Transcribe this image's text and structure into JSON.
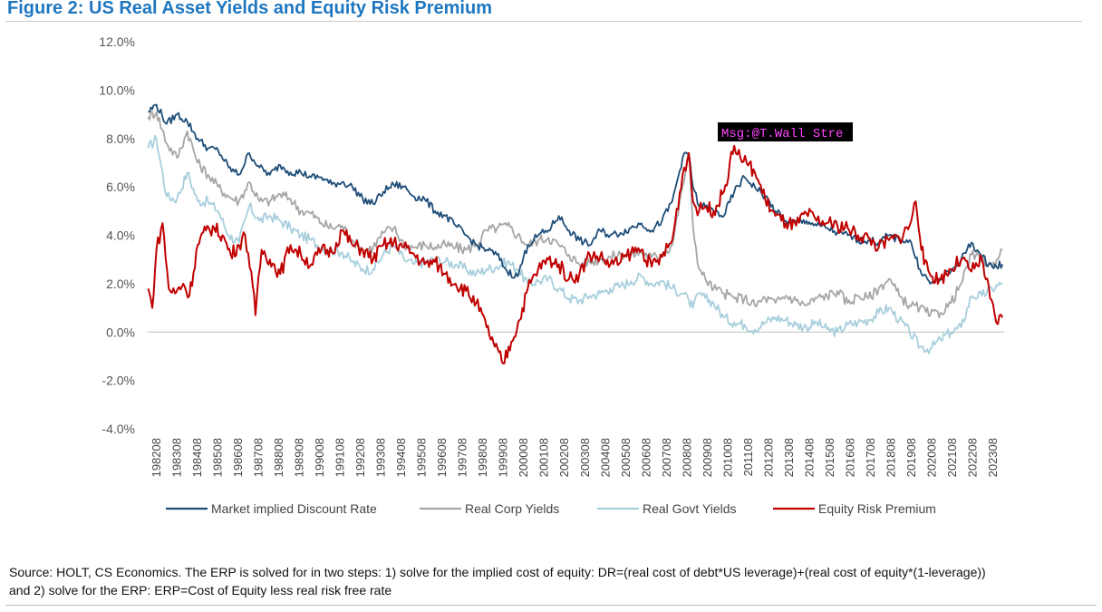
{
  "figure": {
    "title": "Figure 2: US Real Asset Yields and Equity Risk Premium",
    "source_line1": "Source: HOLT, CS Economics. The ERP is solved for in two steps: 1) solve for the implied cost of equity: DR=(real cost of debt*US leverage)+(real cost of equity*(1-leverage))",
    "source_line2": "and 2) solve for the ERP: ERP=Cost of Equity less real risk free rate",
    "overlay_text": "Msg:@T.Wall Stre"
  },
  "colors": {
    "Market implied Discount Rate": "#1f4e79",
    "Real Corp Yields": "#a6a6a6",
    "Real Govt Yields": "#a8cfdc",
    "Equity Risk Premium": "#c00000",
    "overlay_bg": "#000000",
    "overlay_text": "#ff44ff"
  },
  "chart_data": {
    "type": "line",
    "title": "US Real Asset Yields and Equity Risk Premium",
    "xlabel": "",
    "ylabel": "",
    "ylim": [
      -4,
      12
    ],
    "y_ticks": [
      12,
      10,
      8,
      6,
      4,
      2,
      0,
      -2,
      -4
    ],
    "y_tick_labels": [
      "12.0%",
      "10.0%",
      "8.0%",
      "6.0%",
      "4.0%",
      "2.0%",
      "0.0%",
      "-2.0%",
      "-4.0%"
    ],
    "x_start": 1982.58,
    "x_end": 2024.08,
    "x_tick_labels": [
      "198208",
      "198308",
      "198408",
      "198508",
      "198608",
      "198708",
      "198808",
      "198908",
      "199008",
      "199108",
      "199208",
      "199308",
      "199408",
      "199508",
      "199608",
      "199708",
      "199808",
      "199908",
      "200008",
      "200108",
      "200208",
      "200308",
      "200408",
      "200508",
      "200608",
      "200708",
      "200808",
      "200908",
      "201008",
      "201108",
      "201208",
      "201308",
      "201408",
      "201508",
      "201608",
      "201708",
      "201808",
      "201908",
      "202008",
      "202108",
      "202208",
      "202308"
    ],
    "legend_position": "bottom",
    "series": [
      {
        "name": "Market implied Discount Rate",
        "x": [
          1982.6,
          1983.0,
          1983.5,
          1984.0,
          1984.5,
          1985.0,
          1985.5,
          1986.0,
          1986.5,
          1987.0,
          1987.5,
          1988.0,
          1988.5,
          1989.0,
          1989.5,
          1990.0,
          1990.5,
          1991.0,
          1991.5,
          1992.0,
          1992.5,
          1993.0,
          1993.5,
          1994.0,
          1994.5,
          1995.0,
          1995.5,
          1996.0,
          1996.5,
          1997.0,
          1997.5,
          1998.0,
          1998.5,
          1999.0,
          1999.5,
          2000.0,
          2000.5,
          2001.0,
          2001.5,
          2002.0,
          2002.5,
          2003.0,
          2003.5,
          2004.0,
          2004.5,
          2005.0,
          2005.5,
          2006.0,
          2006.5,
          2007.0,
          2007.5,
          2008.0,
          2008.5,
          2008.8,
          2009.0,
          2009.3,
          2009.6,
          2010.0,
          2010.5,
          2011.0,
          2011.5,
          2012.0,
          2012.5,
          2013.0,
          2013.5,
          2014.0,
          2014.5,
          2015.0,
          2015.5,
          2016.0,
          2016.5,
          2017.0,
          2017.5,
          2018.0,
          2018.5,
          2019.0,
          2019.5,
          2020.0,
          2020.5,
          2021.0,
          2021.5,
          2022.0,
          2022.5,
          2023.0,
          2023.5,
          2024.0
        ],
        "values": [
          9.1,
          9.4,
          8.6,
          9.0,
          8.7,
          8.0,
          7.6,
          7.5,
          6.8,
          6.5,
          7.4,
          6.8,
          6.5,
          6.9,
          6.6,
          6.6,
          6.4,
          6.4,
          6.1,
          6.2,
          6.0,
          5.5,
          5.3,
          5.8,
          6.1,
          6.0,
          5.6,
          5.5,
          5.0,
          4.8,
          4.4,
          4.0,
          3.6,
          3.4,
          3.2,
          2.5,
          2.3,
          3.6,
          4.0,
          4.2,
          4.8,
          4.2,
          3.8,
          3.6,
          4.2,
          4.0,
          4.1,
          4.3,
          4.5,
          4.2,
          4.6,
          5.4,
          7.2,
          7.4,
          6.0,
          5.2,
          5.2,
          5.0,
          4.8,
          5.8,
          6.4,
          6.0,
          5.6,
          5.0,
          4.6,
          4.5,
          4.6,
          4.4,
          4.3,
          4.1,
          4.0,
          3.8,
          3.8,
          3.7,
          4.0,
          3.8,
          3.8,
          2.6,
          2.0,
          2.2,
          2.5,
          3.0,
          3.7,
          3.1,
          2.7,
          2.8
        ]
      },
      {
        "name": "Real Corp Yields",
        "x": [
          1982.6,
          1983.0,
          1983.5,
          1984.0,
          1984.5,
          1985.0,
          1985.5,
          1986.0,
          1986.5,
          1987.0,
          1987.5,
          1988.0,
          1988.5,
          1989.0,
          1989.5,
          1990.0,
          1990.5,
          1991.0,
          1991.5,
          1992.0,
          1992.5,
          1993.0,
          1993.5,
          1994.0,
          1994.5,
          1995.0,
          1995.5,
          1996.0,
          1996.5,
          1997.0,
          1997.5,
          1998.0,
          1998.5,
          1999.0,
          1999.5,
          2000.0,
          2000.5,
          2001.0,
          2001.5,
          2002.0,
          2002.5,
          2003.0,
          2003.5,
          2004.0,
          2004.5,
          2005.0,
          2005.5,
          2006.0,
          2006.5,
          2007.0,
          2007.5,
          2008.0,
          2008.5,
          2008.8,
          2009.0,
          2009.3,
          2009.6,
          2010.0,
          2010.5,
          2011.0,
          2011.5,
          2012.0,
          2012.5,
          2013.0,
          2013.5,
          2014.0,
          2014.5,
          2015.0,
          2015.5,
          2016.0,
          2016.5,
          2017.0,
          2017.5,
          2018.0,
          2018.5,
          2019.0,
          2019.5,
          2020.0,
          2020.5,
          2021.0,
          2021.5,
          2022.0,
          2022.5,
          2023.0,
          2023.5,
          2024.0
        ],
        "values": [
          8.9,
          9.1,
          7.8,
          7.2,
          8.3,
          7.0,
          6.5,
          6.0,
          5.6,
          5.4,
          6.2,
          5.4,
          5.4,
          5.7,
          5.5,
          5.0,
          4.9,
          4.5,
          4.3,
          4.4,
          3.8,
          3.4,
          3.5,
          4.1,
          4.3,
          3.6,
          3.5,
          3.6,
          3.5,
          3.6,
          3.5,
          3.4,
          3.6,
          4.2,
          4.3,
          4.4,
          4.0,
          3.6,
          3.8,
          3.9,
          3.6,
          3.2,
          2.8,
          2.9,
          3.0,
          3.1,
          3.2,
          3.2,
          3.3,
          3.1,
          3.2,
          3.6,
          6.0,
          7.4,
          4.4,
          2.6,
          2.2,
          1.8,
          1.6,
          1.4,
          1.4,
          1.1,
          1.4,
          1.2,
          1.5,
          1.3,
          1.1,
          1.4,
          1.5,
          1.7,
          1.2,
          1.5,
          1.4,
          1.8,
          2.2,
          1.5,
          1.1,
          1.0,
          0.7,
          0.8,
          1.2,
          2.0,
          3.2,
          3.0,
          2.7,
          3.4
        ]
      },
      {
        "name": "Real Govt Yields",
        "x": [
          1982.6,
          1983.0,
          1983.5,
          1984.0,
          1984.5,
          1985.0,
          1985.5,
          1986.0,
          1986.5,
          1987.0,
          1987.5,
          1988.0,
          1988.5,
          1989.0,
          1989.5,
          1990.0,
          1990.5,
          1991.0,
          1991.5,
          1992.0,
          1992.5,
          1993.0,
          1993.5,
          1994.0,
          1994.5,
          1995.0,
          1995.5,
          1996.0,
          1996.5,
          1997.0,
          1997.5,
          1998.0,
          1998.5,
          1999.0,
          1999.5,
          2000.0,
          2000.5,
          2001.0,
          2001.5,
          2002.0,
          2002.5,
          2003.0,
          2003.5,
          2004.0,
          2004.5,
          2005.0,
          2005.5,
          2006.0,
          2006.5,
          2007.0,
          2007.5,
          2008.0,
          2008.5,
          2008.8,
          2009.0,
          2009.3,
          2009.6,
          2010.0,
          2010.5,
          2011.0,
          2011.5,
          2012.0,
          2012.5,
          2013.0,
          2013.5,
          2014.0,
          2014.5,
          2015.0,
          2015.5,
          2016.0,
          2016.5,
          2017.0,
          2017.5,
          2018.0,
          2018.5,
          2019.0,
          2019.5,
          2020.0,
          2020.5,
          2021.0,
          2021.5,
          2022.0,
          2022.5,
          2023.0,
          2023.5,
          2024.0
        ],
        "values": [
          7.6,
          8.0,
          5.6,
          5.5,
          6.6,
          5.4,
          5.4,
          5.0,
          4.0,
          3.7,
          5.2,
          4.6,
          4.8,
          4.6,
          4.3,
          4.0,
          3.8,
          3.5,
          3.4,
          3.3,
          2.9,
          2.6,
          2.6,
          3.2,
          3.6,
          3.0,
          2.8,
          2.9,
          3.0,
          2.9,
          2.8,
          2.6,
          2.4,
          2.6,
          2.7,
          2.9,
          2.6,
          2.0,
          2.1,
          2.2,
          1.8,
          1.4,
          1.3,
          1.5,
          1.6,
          1.8,
          1.9,
          2.1,
          2.3,
          2.0,
          2.1,
          1.8,
          1.6,
          1.3,
          1.0,
          1.6,
          1.4,
          1.2,
          0.6,
          0.4,
          0.3,
          0.1,
          0.4,
          0.6,
          0.5,
          0.3,
          0.2,
          0.4,
          0.1,
          0.0,
          0.3,
          0.4,
          0.5,
          0.8,
          1.0,
          0.5,
          0.0,
          -0.6,
          -0.7,
          -0.3,
          0.0,
          0.2,
          1.5,
          1.5,
          1.8,
          2.0
        ]
      },
      {
        "name": "Equity Risk Premium",
        "x": [
          1982.6,
          1982.8,
          1983.0,
          1983.3,
          1983.6,
          1983.9,
          1984.3,
          1984.6,
          1985.0,
          1985.4,
          1985.8,
          1986.2,
          1986.6,
          1987.0,
          1987.3,
          1987.6,
          1987.8,
          1988.1,
          1988.5,
          1989.0,
          1989.5,
          1990.0,
          1990.5,
          1991.0,
          1991.5,
          1992.0,
          1992.5,
          1993.0,
          1993.5,
          1994.0,
          1994.5,
          1995.0,
          1995.5,
          1996.0,
          1996.5,
          1997.0,
          1997.5,
          1998.0,
          1998.5,
          1999.0,
          1999.4,
          1999.8,
          2000.2,
          2000.6,
          2001.0,
          2001.5,
          2002.0,
          2002.5,
          2003.0,
          2003.5,
          2004.0,
          2004.5,
          2005.0,
          2005.5,
          2006.0,
          2006.5,
          2007.0,
          2007.5,
          2008.0,
          2008.5,
          2008.8,
          2009.0,
          2009.3,
          2009.6,
          2010.0,
          2010.5,
          2011.0,
          2011.3,
          2011.6,
          2012.0,
          2012.5,
          2013.0,
          2013.5,
          2014.0,
          2014.5,
          2015.0,
          2015.5,
          2016.0,
          2016.5,
          2017.0,
          2017.5,
          2018.0,
          2018.5,
          2019.0,
          2019.5,
          2019.8,
          2020.2,
          2020.6,
          2021.0,
          2021.5,
          2022.0,
          2022.5,
          2023.0,
          2023.4,
          2023.7,
          2024.0
        ],
        "values": [
          1.8,
          1.0,
          3.4,
          4.5,
          1.8,
          1.6,
          2.0,
          1.5,
          3.6,
          4.2,
          4.3,
          4.0,
          3.2,
          3.6,
          4.0,
          2.5,
          0.7,
          3.4,
          3.0,
          2.4,
          3.6,
          3.2,
          2.8,
          3.4,
          3.3,
          4.2,
          3.6,
          3.4,
          3.0,
          3.6,
          3.7,
          3.5,
          3.2,
          2.8,
          2.9,
          2.4,
          2.0,
          1.7,
          1.2,
          0.2,
          -0.6,
          -1.3,
          -0.4,
          0.5,
          1.8,
          2.6,
          3.0,
          2.8,
          2.2,
          2.4,
          3.2,
          3.1,
          2.8,
          2.9,
          3.3,
          3.4,
          2.7,
          3.1,
          3.8,
          6.5,
          7.4,
          5.4,
          5.0,
          5.2,
          5.0,
          5.8,
          7.7,
          7.2,
          7.0,
          6.6,
          5.5,
          4.8,
          4.5,
          4.4,
          4.9,
          4.6,
          4.5,
          4.4,
          4.3,
          4.0,
          3.9,
          3.5,
          3.8,
          3.9,
          4.4,
          5.4,
          2.8,
          2.3,
          2.2,
          2.6,
          3.0,
          2.5,
          3.0,
          1.4,
          0.4,
          0.6
        ]
      }
    ]
  }
}
